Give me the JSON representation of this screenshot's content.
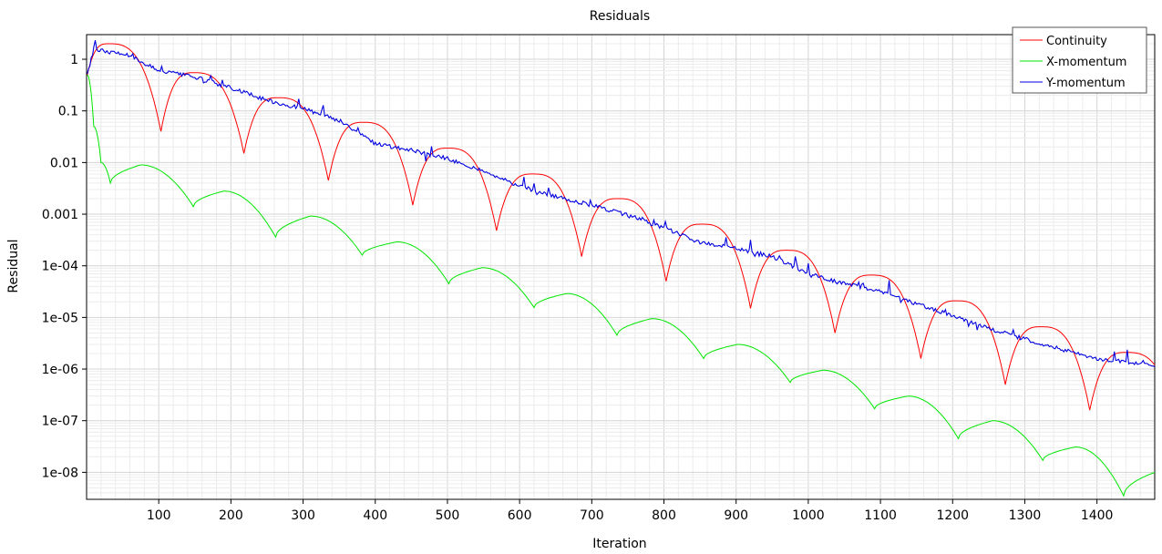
{
  "chart_data": {
    "type": "line",
    "title": "Residuals",
    "xlabel": "Iteration",
    "ylabel": "Residual",
    "y_scale": "log",
    "xlim": [
      0,
      1480
    ],
    "ylim": [
      3e-09,
      3
    ],
    "x_ticks": [
      100,
      200,
      300,
      400,
      500,
      600,
      700,
      800,
      900,
      1000,
      1100,
      1200,
      1300,
      1400
    ],
    "y_ticks": [
      1,
      0.1,
      0.01,
      0.001,
      0.0001,
      1e-05,
      1e-06,
      1e-07,
      1e-08
    ],
    "y_tick_labels": [
      "1",
      "0.1",
      "0.01",
      "0.001",
      "1e-04",
      "1e-05",
      "1e-06",
      "1e-07",
      "1e-08"
    ],
    "grid": true,
    "legend_position": "top-right",
    "series": [
      {
        "name": "Continuity",
        "color": "#ff0000",
        "x": [
          1,
          30,
          103,
          148,
          218,
          265,
          335,
          383,
          452,
          500,
          568,
          618,
          686,
          736,
          803,
          852,
          920,
          970,
          1037,
          1087,
          1156,
          1205,
          1273,
          1322,
          1390,
          1440,
          1480
        ],
        "y": [
          0.5,
          2.0,
          0.04,
          0.55,
          0.015,
          0.18,
          0.0045,
          0.06,
          0.0015,
          0.019,
          0.00048,
          0.006,
          0.00015,
          0.002,
          5e-05,
          0.00064,
          1.5e-05,
          0.0002,
          5e-06,
          6.6e-05,
          1.6e-06,
          2.1e-05,
          5e-07,
          6.6e-06,
          1.6e-07,
          2.1e-06,
          1.2e-06
        ]
      },
      {
        "name": "X-momentum",
        "color": "#00e600",
        "x": [
          1,
          10,
          20,
          33,
          75,
          148,
          190,
          262,
          310,
          382,
          430,
          502,
          548,
          620,
          665,
          735,
          783,
          855,
          902,
          975,
          1020,
          1092,
          1138,
          1208,
          1255,
          1325,
          1370,
          1437,
          1480
        ],
        "y": [
          0.5,
          0.05,
          0.01,
          0.004,
          0.009,
          0.0014,
          0.0028,
          0.00036,
          0.00092,
          0.00016,
          0.00029,
          4.5e-05,
          9.2e-05,
          1.55e-05,
          2.9e-05,
          4.5e-06,
          9.5e-06,
          1.6e-06,
          3e-06,
          5.5e-07,
          9.5e-07,
          1.7e-07,
          3e-07,
          4.5e-08,
          1e-07,
          1.7e-08,
          3.1e-08,
          3.5e-09,
          1e-08
        ]
      },
      {
        "name": "Y-momentum",
        "color": "#0000e0",
        "x": [
          1,
          10,
          30,
          60,
          100,
          150,
          200,
          250,
          300,
          350,
          400,
          450,
          500,
          550,
          600,
          650,
          700,
          750,
          800,
          850,
          900,
          950,
          1000,
          1050,
          1100,
          1150,
          1200,
          1250,
          1300,
          1350,
          1400,
          1450,
          1480
        ],
        "y": [
          0.5,
          1.6,
          1.4,
          1.2,
          0.6,
          0.45,
          0.28,
          0.16,
          0.11,
          0.065,
          0.023,
          0.017,
          0.012,
          0.0068,
          0.0035,
          0.0022,
          0.0015,
          0.00095,
          0.00055,
          0.00028,
          0.00022,
          0.00015,
          7.2e-05,
          4.5e-05,
          3.2e-05,
          1.8e-05,
          1.1e-05,
          6.2e-06,
          3.8e-06,
          2.4e-06,
          1.6e-06,
          1.3e-06,
          1.1e-06
        ]
      }
    ]
  }
}
